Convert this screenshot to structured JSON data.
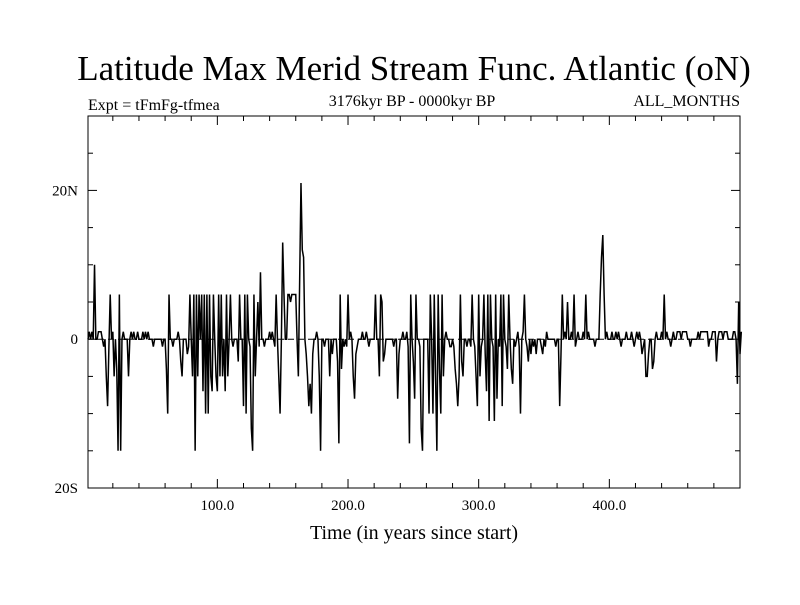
{
  "chart_data": {
    "type": "line",
    "title": "Latitude Max Merid Stream Func. Atlantic (oN)",
    "subtitle_left": "Expt = tFmFg-tfmea",
    "subtitle_center": "3176kyr BP - 0000kyr BP",
    "subtitle_right": "ALL_MONTHS",
    "xlabel": "Time (in years since start)",
    "ylabel": "",
    "xlim": [
      1,
      500
    ],
    "ylim": [
      -20,
      30
    ],
    "x_ticks": [
      100,
      200,
      300,
      400
    ],
    "x_tick_labels": [
      "100.0",
      "200.0",
      "300.0",
      "400.0"
    ],
    "y_ticks": [
      -20,
      0,
      20
    ],
    "y_tick_labels": [
      "20S",
      "0",
      "20N"
    ],
    "grid": false,
    "reference_line_y": 0,
    "series": [
      {
        "values": [
          0,
          1,
          0,
          1,
          0,
          10,
          0,
          0,
          1,
          1,
          1,
          0,
          -1,
          0,
          -5,
          -9,
          -1,
          6,
          0,
          1,
          -5,
          0,
          -4,
          -15,
          6,
          -15,
          0,
          1,
          0,
          0,
          0,
          -5,
          0,
          1,
          0,
          1,
          0,
          0,
          1,
          0,
          0,
          0,
          1,
          0,
          1,
          0,
          1,
          0,
          0,
          0,
          -1,
          0,
          0,
          0,
          0,
          0,
          0,
          -1,
          0,
          0,
          -4,
          -10,
          6,
          0,
          0,
          -1,
          0,
          0,
          0,
          1,
          0,
          -3,
          -5,
          0,
          0,
          0,
          -2,
          -1,
          6,
          0,
          -5,
          6,
          -15,
          6,
          -5,
          6,
          0,
          6,
          -7,
          6,
          -10,
          6,
          -10,
          6,
          -5,
          -7,
          6,
          0,
          -5,
          -7,
          6,
          -5,
          6,
          -5,
          0,
          -7,
          6,
          -5,
          0,
          6,
          0,
          -1,
          0,
          0,
          0,
          -3,
          6,
          0,
          0,
          -9,
          6,
          -10,
          6,
          0,
          -1,
          -12,
          -15,
          6,
          -5,
          0,
          5,
          -1,
          9,
          0,
          0,
          -1,
          0,
          0,
          0,
          1,
          0,
          1,
          0,
          -1,
          6,
          0,
          -5,
          -10,
          0,
          13,
          6,
          0,
          0,
          6,
          6,
          5,
          6,
          6,
          6,
          6,
          0,
          -5,
          8,
          21,
          12,
          11,
          0,
          -2,
          -5,
          -9,
          -6,
          -10,
          -2,
          0,
          0,
          1,
          0,
          -5,
          -15,
          0,
          0,
          -1,
          0,
          0,
          0,
          -5,
          0,
          -2,
          0,
          0,
          0,
          -3,
          -14,
          6,
          -4,
          0,
          -1,
          0,
          -1,
          6,
          0,
          1,
          0,
          -5,
          -8,
          -2,
          -1,
          0,
          0,
          0,
          1,
          0,
          0,
          1,
          0,
          -1,
          0,
          0,
          0,
          0,
          6,
          0,
          0,
          -5,
          6,
          5,
          -3,
          -2,
          0,
          0,
          0,
          0,
          0,
          0,
          -1,
          0,
          0,
          -8,
          -2,
          0,
          0,
          1,
          0,
          0,
          1,
          -1,
          -14,
          6,
          0,
          -3,
          -8,
          6,
          0,
          0,
          -1,
          -12,
          -15,
          0,
          0,
          0,
          0,
          -10,
          6,
          0,
          -10,
          6,
          -5,
          -15,
          6,
          -4,
          -10,
          6,
          -5,
          0,
          1,
          0,
          0,
          -1,
          -1,
          0,
          -1,
          -4,
          -6,
          -9,
          -5,
          6,
          -3,
          -5,
          0,
          0,
          -1,
          0,
          0,
          -1,
          6,
          0,
          -1,
          -5,
          -9,
          6,
          -5,
          -1,
          0,
          6,
          -2,
          -7,
          6,
          -11,
          6,
          0,
          -1,
          -11,
          6,
          -8,
          0,
          -1,
          6,
          -9,
          6,
          0,
          -1,
          -4,
          6,
          0,
          -4,
          -6,
          0,
          -1,
          0,
          1,
          -1,
          -10,
          0,
          1,
          6,
          0,
          -1,
          -3,
          0,
          -2,
          0,
          -1,
          0,
          -2,
          0,
          0,
          0,
          -1,
          -2,
          0,
          -1,
          1,
          0,
          0,
          0,
          0,
          0,
          0,
          -1,
          0,
          0,
          -9,
          -2,
          6,
          0,
          1,
          0,
          5,
          0,
          0,
          1,
          0,
          6,
          -1,
          0,
          1,
          0,
          0,
          0,
          1,
          0,
          6,
          0,
          1,
          0,
          0,
          0,
          0,
          -1,
          0,
          0,
          0,
          6,
          11,
          14,
          6,
          0,
          1,
          0,
          0,
          0,
          1,
          0,
          0,
          1,
          0,
          1,
          0,
          -1,
          0,
          0,
          0,
          1,
          0,
          0,
          0,
          1,
          0,
          -1,
          0,
          1,
          0,
          1,
          0,
          -2,
          -1,
          0,
          -5,
          -5,
          -2,
          0,
          0,
          -4,
          -3,
          0,
          1,
          0,
          0,
          0,
          1,
          0,
          6,
          0,
          1,
          0,
          0,
          -1,
          0,
          1,
          0,
          0,
          1,
          1,
          1,
          0,
          1,
          1,
          1,
          1,
          0,
          0,
          -1,
          0,
          0,
          0,
          0,
          0,
          1,
          0,
          1,
          1,
          1,
          1,
          1,
          1,
          -1,
          0,
          0,
          1,
          1,
          1,
          -3,
          0,
          1,
          1,
          1,
          0,
          1,
          1,
          1,
          0,
          0,
          0,
          0,
          1,
          1,
          0,
          -6,
          5,
          -2,
          1
        ]
      }
    ]
  }
}
